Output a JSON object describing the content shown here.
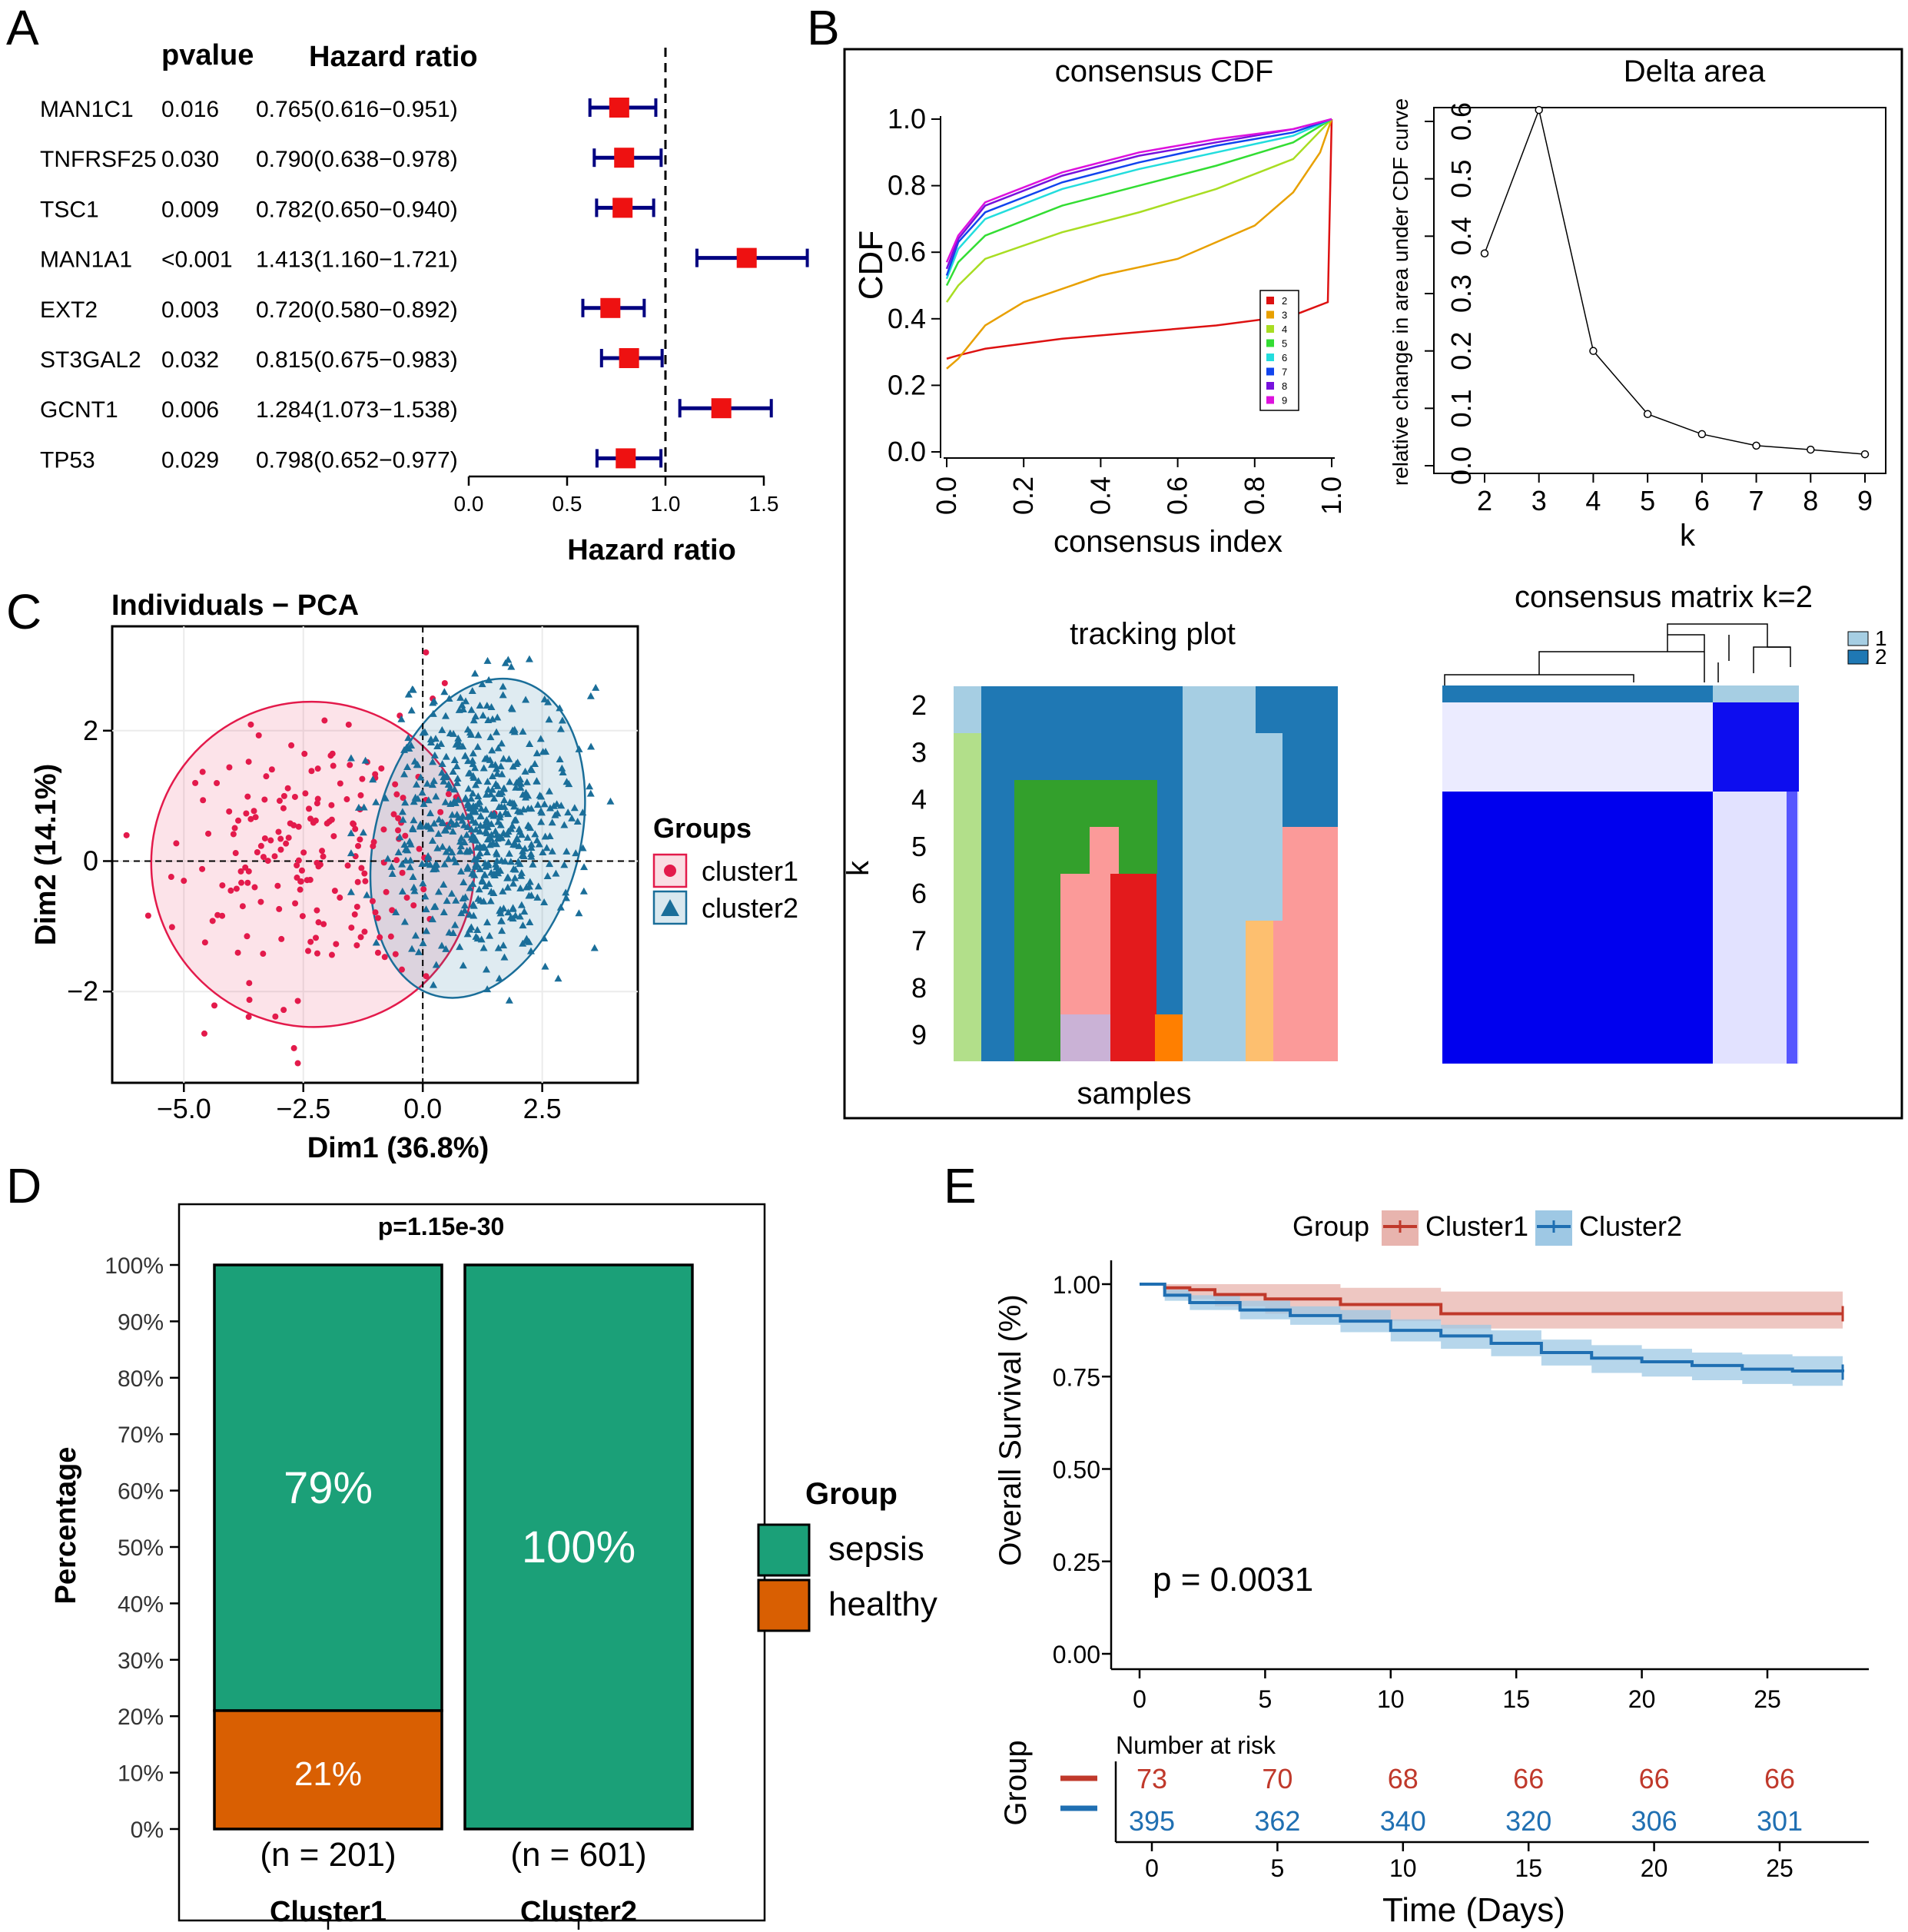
{
  "panel_labels": {
    "a": "A",
    "b": "B",
    "c": "C",
    "d": "D",
    "e": "E"
  },
  "chart_data": [
    {
      "id": "A",
      "type": "forest",
      "col_pvalue": "pvalue",
      "col_hr": "Hazard ratio",
      "xlabel": "Hazard ratio",
      "xlim": [
        0.0,
        1.6
      ],
      "ref_line": 1.0,
      "xticks": [
        "0.0",
        "0.5",
        "1.0",
        "1.5"
      ],
      "rows": [
        {
          "gene": "MAN1C1",
          "pvalue": "0.016",
          "hr_text": "0.765(0.616−0.951)",
          "hr": 0.765,
          "lo": 0.616,
          "hi": 0.951
        },
        {
          "gene": "TNFRSF25",
          "pvalue": "0.030",
          "hr_text": "0.790(0.638−0.978)",
          "hr": 0.79,
          "lo": 0.638,
          "hi": 0.978
        },
        {
          "gene": "TSC1",
          "pvalue": "0.009",
          "hr_text": "0.782(0.650−0.940)",
          "hr": 0.782,
          "lo": 0.65,
          "hi": 0.94
        },
        {
          "gene": "MAN1A1",
          "pvalue": "<0.001",
          "hr_text": "1.413(1.160−1.721)",
          "hr": 1.413,
          "lo": 1.16,
          "hi": 1.721
        },
        {
          "gene": "EXT2",
          "pvalue": "0.003",
          "hr_text": "0.720(0.580−0.892)",
          "hr": 0.72,
          "lo": 0.58,
          "hi": 0.892
        },
        {
          "gene": "ST3GAL2",
          "pvalue": "0.032",
          "hr_text": "0.815(0.675−0.983)",
          "hr": 0.815,
          "lo": 0.675,
          "hi": 0.983
        },
        {
          "gene": "GCNT1",
          "pvalue": "0.006",
          "hr_text": "1.284(1.073−1.538)",
          "hr": 1.284,
          "lo": 1.073,
          "hi": 1.538
        },
        {
          "gene": "TP53",
          "pvalue": "0.029",
          "hr_text": "0.798(0.652−0.977)",
          "hr": 0.798,
          "lo": 0.652,
          "hi": 0.977
        }
      ],
      "colors": {
        "marker": "#ee1111",
        "ci": "#000080"
      }
    },
    {
      "id": "B1",
      "type": "line",
      "title": "consensus CDF",
      "xlabel": "consensus index",
      "ylabel": "CDF",
      "xlim": [
        0,
        1
      ],
      "ylim": [
        0,
        1
      ],
      "xticks": [
        "0.0",
        "0.2",
        "0.4",
        "0.6",
        "0.8",
        "1.0"
      ],
      "yticks": [
        "0.0",
        "0.2",
        "0.4",
        "0.6",
        "0.8",
        "1.0"
      ],
      "legend": [
        "2",
        "3",
        "4",
        "5",
        "6",
        "7",
        "8",
        "9"
      ],
      "series": [
        {
          "name": "2",
          "color": "#dd1111",
          "x": [
            0,
            0.03,
            0.1,
            0.3,
            0.5,
            0.7,
            0.9,
            0.99,
            1.0
          ],
          "y": [
            0.28,
            0.29,
            0.31,
            0.34,
            0.36,
            0.38,
            0.41,
            0.45,
            1.0
          ]
        },
        {
          "name": "3",
          "color": "#e8a000",
          "x": [
            0,
            0.03,
            0.1,
            0.2,
            0.4,
            0.6,
            0.8,
            0.9,
            0.97,
            1.0
          ],
          "y": [
            0.25,
            0.28,
            0.38,
            0.45,
            0.53,
            0.58,
            0.68,
            0.78,
            0.9,
            1.0
          ]
        },
        {
          "name": "4",
          "color": "#a8dd22",
          "x": [
            0,
            0.03,
            0.1,
            0.3,
            0.5,
            0.7,
            0.9,
            1.0
          ],
          "y": [
            0.45,
            0.5,
            0.58,
            0.66,
            0.72,
            0.79,
            0.88,
            1.0
          ]
        },
        {
          "name": "5",
          "color": "#33dd33",
          "x": [
            0,
            0.03,
            0.1,
            0.3,
            0.5,
            0.7,
            0.9,
            1.0
          ],
          "y": [
            0.5,
            0.57,
            0.65,
            0.74,
            0.8,
            0.86,
            0.93,
            1.0
          ]
        },
        {
          "name": "6",
          "color": "#22dddd",
          "x": [
            0,
            0.03,
            0.1,
            0.3,
            0.5,
            0.7,
            0.9,
            1.0
          ],
          "y": [
            0.52,
            0.61,
            0.7,
            0.79,
            0.85,
            0.9,
            0.95,
            1.0
          ]
        },
        {
          "name": "7",
          "color": "#1144ee",
          "x": [
            0,
            0.03,
            0.1,
            0.3,
            0.5,
            0.7,
            0.9,
            1.0
          ],
          "y": [
            0.53,
            0.63,
            0.72,
            0.81,
            0.87,
            0.92,
            0.96,
            1.0
          ]
        },
        {
          "name": "8",
          "color": "#7711dd",
          "x": [
            0,
            0.03,
            0.1,
            0.3,
            0.5,
            0.7,
            0.9,
            1.0
          ],
          "y": [
            0.55,
            0.64,
            0.74,
            0.83,
            0.89,
            0.93,
            0.97,
            1.0
          ]
        },
        {
          "name": "9",
          "color": "#dd11dd",
          "x": [
            0,
            0.03,
            0.1,
            0.3,
            0.5,
            0.7,
            0.9,
            1.0
          ],
          "y": [
            0.57,
            0.65,
            0.75,
            0.84,
            0.9,
            0.94,
            0.97,
            1.0
          ]
        }
      ]
    },
    {
      "id": "B2",
      "type": "line",
      "title": "Delta area",
      "xlabel": "k",
      "ylabel": "relative change in area under CDF curve",
      "xlim": [
        2,
        9
      ],
      "ylim": [
        0,
        0.6
      ],
      "xticks": [
        "2",
        "3",
        "4",
        "5",
        "6",
        "7",
        "8",
        "9"
      ],
      "yticks": [
        "0.0",
        "0.1",
        "0.2",
        "0.3",
        "0.4",
        "0.5",
        "0.6"
      ],
      "x": [
        2,
        3,
        4,
        5,
        6,
        7,
        8,
        9
      ],
      "y": [
        0.37,
        0.62,
        0.2,
        0.09,
        0.055,
        0.035,
        0.028,
        0.02
      ]
    },
    {
      "id": "B3",
      "type": "heatmap",
      "title": "tracking plot",
      "xlabel": "samples",
      "ylabel": "k",
      "rows": [
        "2",
        "3",
        "4",
        "5",
        "6",
        "7",
        "8",
        "9"
      ]
    },
    {
      "id": "B4",
      "type": "heatmap",
      "title": "consensus matrix k=2",
      "legend": [
        "1",
        "2"
      ],
      "colors": {
        "c1": "#a6cee3",
        "c2": "#1f78b4",
        "high": "#0000ff"
      }
    },
    {
      "id": "C",
      "type": "scatter",
      "title": "Individuals − PCA",
      "xlabel": "Dim1 (36.8%)",
      "ylabel": "Dim2 (14.1%)",
      "xlim": [
        -6.5,
        4.5
      ],
      "ylim": [
        -3.4,
        3.6
      ],
      "xticks": [
        "−5.0",
        "−2.5",
        "0.0",
        "2.5"
      ],
      "yticks": [
        "−2",
        "0",
        "2"
      ],
      "legend_title": "Groups",
      "series": [
        {
          "name": "cluster1",
          "color": "#e31a4b",
          "center": [
            -2.2,
            0.0
          ],
          "count": 201
        },
        {
          "name": "cluster2",
          "color": "#1a6e99",
          "center": [
            1.2,
            0.6
          ],
          "count": 601
        }
      ]
    },
    {
      "id": "D",
      "type": "bar",
      "stacked": true,
      "title": "p=1.15e-30",
      "ylabel": "Percentage",
      "categories": [
        "Cluster1",
        "Cluster2"
      ],
      "n_labels": [
        "(n = 201)",
        "(n = 601)"
      ],
      "series": [
        {
          "name": "sepsis",
          "color": "#1ba078",
          "values": [
            79,
            100
          ],
          "labels": [
            "79%",
            "100%"
          ]
        },
        {
          "name": "healthy",
          "color": "#d95f02",
          "values": [
            21,
            0
          ],
          "labels": [
            "21%",
            ""
          ]
        }
      ],
      "yticks": [
        "0%",
        "10%",
        "20%",
        "30%",
        "40%",
        "50%",
        "60%",
        "70%",
        "80%",
        "90%",
        "100%"
      ],
      "legend_title": "Group"
    },
    {
      "id": "E",
      "type": "line",
      "subtype": "kaplan-meier",
      "legend_title": "Group",
      "xlabel": "Time (Days)",
      "ylabel": "Overall Survival (%)",
      "xlim": [
        0,
        28
      ],
      "ylim": [
        0,
        1
      ],
      "xticks": [
        "0",
        "5",
        "10",
        "15",
        "20",
        "25"
      ],
      "yticks": [
        "0.00",
        "0.25",
        "0.50",
        "0.75",
        "1.00"
      ],
      "pvalue": "p = 0.0031",
      "series": [
        {
          "name": "Cluster1",
          "color": "#c0392b",
          "band": "#e8b4ae",
          "x": [
            0,
            1,
            2,
            3,
            5,
            8,
            12,
            28
          ],
          "y": [
            1.0,
            0.99,
            0.985,
            0.972,
            0.96,
            0.945,
            0.92,
            0.92
          ],
          "lo": [
            1.0,
            0.97,
            0.96,
            0.94,
            0.92,
            0.9,
            0.88,
            0.88
          ],
          "hi": [
            1.0,
            1.0,
            1.0,
            1.0,
            1.0,
            0.99,
            0.98,
            0.98
          ]
        },
        {
          "name": "Cluster2",
          "color": "#1f6fb2",
          "band": "#9ec8e4",
          "x": [
            0,
            1,
            2,
            4,
            6,
            8,
            10,
            12,
            14,
            16,
            18,
            20,
            22,
            24,
            26,
            28
          ],
          "y": [
            1.0,
            0.97,
            0.95,
            0.93,
            0.915,
            0.9,
            0.875,
            0.86,
            0.84,
            0.815,
            0.8,
            0.79,
            0.78,
            0.77,
            0.765,
            0.762
          ],
          "lo": [
            1.0,
            0.955,
            0.93,
            0.905,
            0.89,
            0.87,
            0.845,
            0.825,
            0.805,
            0.78,
            0.76,
            0.75,
            0.74,
            0.73,
            0.725,
            0.72
          ],
          "hi": [
            1.0,
            0.985,
            0.97,
            0.955,
            0.94,
            0.93,
            0.905,
            0.89,
            0.875,
            0.85,
            0.835,
            0.825,
            0.815,
            0.81,
            0.805,
            0.8
          ]
        }
      ],
      "risk_table": {
        "title": "Number at risk",
        "ylabel": "Group",
        "times": [
          "0",
          "5",
          "10",
          "15",
          "20",
          "25"
        ],
        "rows": [
          {
            "name": "Cluster1",
            "color": "#c0392b",
            "values": [
              "73",
              "70",
              "68",
              "66",
              "66",
              "66"
            ]
          },
          {
            "name": "Cluster2",
            "color": "#1f6fb2",
            "values": [
              "395",
              "362",
              "340",
              "320",
              "306",
              "301"
            ]
          }
        ]
      }
    }
  ]
}
